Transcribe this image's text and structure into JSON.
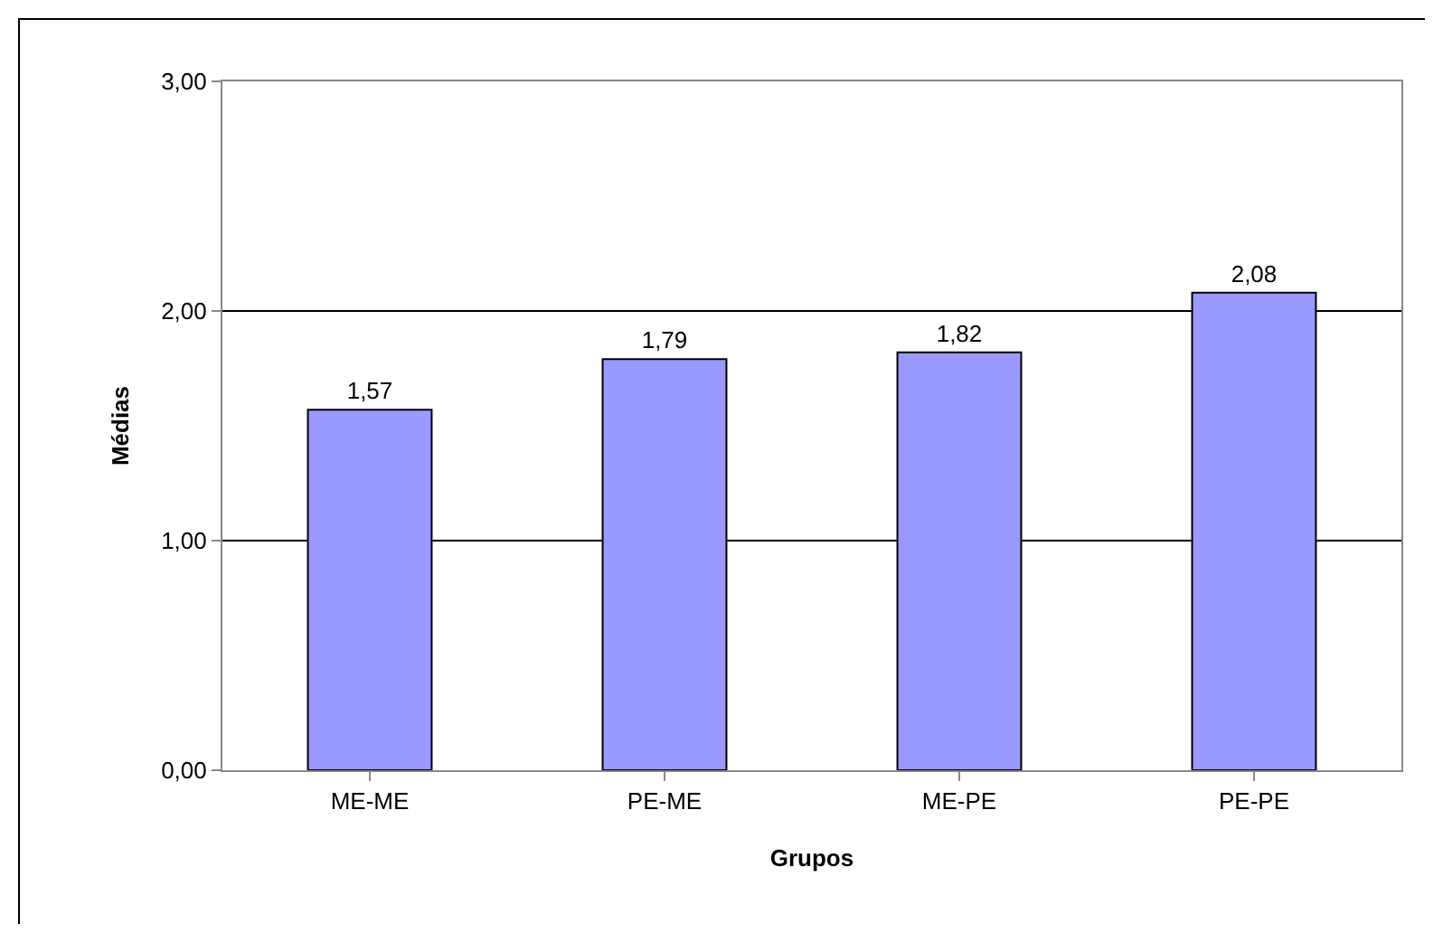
{
  "chart_data": {
    "type": "bar",
    "xlabel": "Grupos",
    "ylabel": "Médias",
    "categories": [
      "ME-ME",
      "PE-ME",
      "ME-PE",
      "PE-PE"
    ],
    "values": [
      1.57,
      1.79,
      1.82,
      2.08
    ],
    "value_labels": [
      "1,57",
      "1,79",
      "1,82",
      "2,08"
    ],
    "color": "#9999ff",
    "ylim": [
      0,
      3
    ],
    "yticks": [
      {
        "value": 0,
        "label": "0,00"
      },
      {
        "value": 1,
        "label": "1,00"
      },
      {
        "value": 2,
        "label": "2,00"
      },
      {
        "value": 3,
        "label": "3,00"
      }
    ],
    "grid": "y",
    "legend": false
  }
}
